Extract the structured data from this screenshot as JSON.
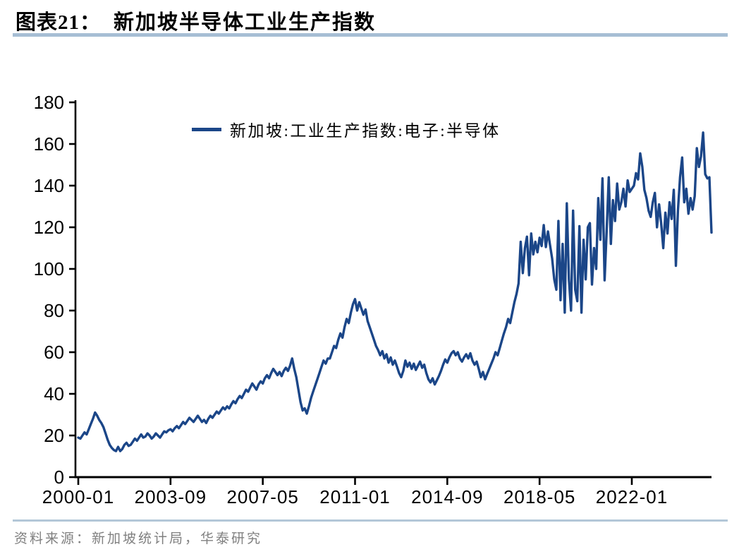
{
  "page": {
    "title_label": "图表21：",
    "title_text": "新加坡半导体工业生产指数",
    "source_label": "资料来源：",
    "source_text": "新加坡统计局，华泰研究"
  },
  "colors": {
    "line": "#1b4688",
    "title_rule": "#a6bed4",
    "footer_rule": "#b3c7d8",
    "source_text": "#808080",
    "axis": "#000000"
  },
  "chart_data": {
    "type": "line",
    "title": "新加坡半导体工业生产指数",
    "legend": [
      {
        "name": "新加坡:工业生产指数:电子:半导体",
        "color": "#1b4688"
      }
    ],
    "legend_position": "top-center-inside",
    "grid": false,
    "ylim": [
      0,
      180
    ],
    "y_ticks": [
      0,
      20,
      40,
      60,
      80,
      100,
      120,
      140,
      160,
      180
    ],
    "x_start": "2000-01",
    "x_end": "2025-03",
    "frequency": "monthly",
    "x_ticks": [
      {
        "label": "2000-01",
        "month_index": 0
      },
      {
        "label": "2003-09",
        "month_index": 44
      },
      {
        "label": "2007-05",
        "month_index": 88
      },
      {
        "label": "2011-01",
        "month_index": 132
      },
      {
        "label": "2014-09",
        "month_index": 176
      },
      {
        "label": "2018-05",
        "month_index": 220
      },
      {
        "label": "2022-01",
        "month_index": 264
      }
    ],
    "series": [
      {
        "name": "新加坡:工业生产指数:电子:半导体",
        "color": "#1b4688",
        "start": "2000-01",
        "values": [
          19,
          18.5,
          20,
          21.5,
          20.5,
          23,
          25.5,
          28,
          31,
          29.5,
          27.5,
          26,
          24,
          21,
          18,
          15.5,
          14,
          13,
          12.5,
          14.5,
          12.5,
          13.5,
          15.5,
          16.5,
          15,
          15.5,
          17,
          18.5,
          17.5,
          19,
          20.5,
          19,
          19.5,
          21,
          20,
          18.5,
          19.5,
          21,
          20,
          19,
          20.5,
          22,
          21.5,
          22.5,
          23,
          22,
          23.5,
          24.5,
          23.5,
          25,
          26.5,
          25.5,
          27,
          28.5,
          27.5,
          26.5,
          28,
          29.5,
          28,
          26.5,
          27.5,
          26,
          28,
          29.5,
          28.5,
          30,
          31.5,
          30.5,
          32,
          33.5,
          32.5,
          34,
          33,
          35,
          36.5,
          35.5,
          37.5,
          39,
          38,
          40,
          42,
          41,
          43,
          45,
          43.5,
          42,
          44.5,
          46,
          45,
          47.5,
          49,
          47.5,
          50,
          52,
          50.5,
          49,
          50.5,
          48.5,
          51,
          52.5,
          51,
          53.5,
          57,
          52,
          48,
          42,
          36,
          32,
          33,
          30.5,
          34,
          38,
          41,
          44,
          47,
          50,
          53,
          56,
          54.5,
          57,
          57,
          60,
          63,
          62,
          66,
          69,
          67,
          72,
          76,
          74,
          79,
          83,
          85.5,
          80,
          84,
          81,
          78,
          80.5,
          75,
          72,
          69,
          66,
          63,
          61,
          58.5,
          60.5,
          57,
          59,
          55,
          57.5,
          54,
          56,
          53,
          50,
          48,
          51,
          56,
          53,
          55,
          52,
          54.5,
          51.5,
          53.5,
          55.5,
          52.5,
          54,
          50,
          47,
          45.5,
          47.5,
          44.5,
          46.5,
          48.5,
          51,
          54,
          56.5,
          55,
          57.5,
          59.5,
          60.5,
          58.5,
          60,
          57,
          55.5,
          57.5,
          59,
          57,
          59.5,
          56,
          54,
          55.5,
          52,
          48,
          50.5,
          47,
          49.5,
          52,
          54.5,
          57,
          60,
          58.5,
          62,
          65.5,
          69,
          72,
          76,
          74,
          79,
          84,
          88,
          93,
          113,
          98,
          110,
          115.5,
          97,
          117,
          107,
          113,
          108,
          115,
          111,
          121,
          110.5,
          118,
          111.5,
          105,
          95,
          90,
          123,
          85,
          112,
          79,
          131.5,
          95,
          80,
          128,
          90,
          84.5,
          120.5,
          79,
          114,
          95,
          120,
          122,
          92.5,
          110,
          100,
          134,
          114,
          143.5,
          94.5,
          118,
          144,
          112,
          133,
          123,
          141,
          128.5,
          132,
          138.5,
          130,
          142.5,
          137,
          138.5,
          140,
          146,
          143,
          155.5,
          149,
          138,
          134,
          128,
          125,
          132,
          136.5,
          120,
          131,
          122,
          110,
          127,
          117,
          132,
          124,
          138,
          101.5,
          128,
          144,
          153.5,
          132,
          138.5,
          126.5,
          134,
          128.5,
          135,
          158,
          149,
          154,
          165.5,
          145.5,
          143.5,
          144,
          117.5
        ]
      }
    ]
  }
}
